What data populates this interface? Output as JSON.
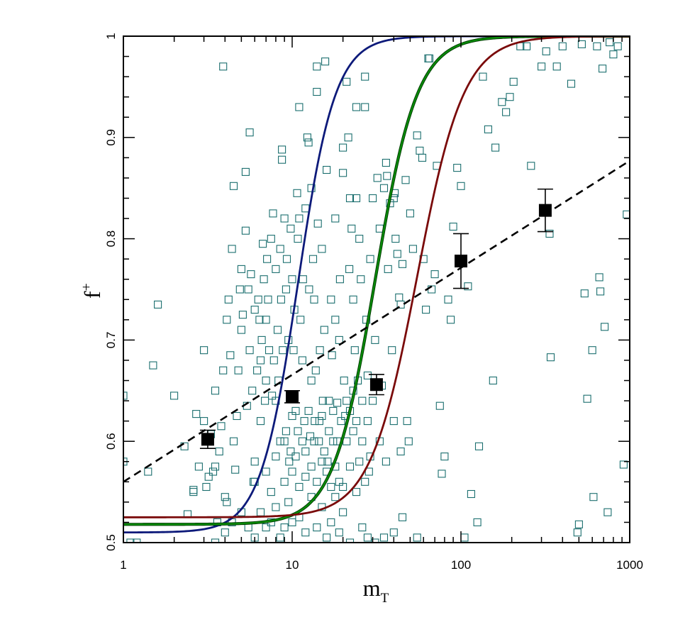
{
  "chart_data": {
    "type": "scatter",
    "title": "",
    "xlabel": "m",
    "xlabel_sub": "T",
    "ylabel": "f",
    "ylabel_sup": "+",
    "x_scale": "log",
    "xlim": [
      1,
      1000
    ],
    "ylim": [
      0.5,
      1.0
    ],
    "x_ticks": [
      1,
      10,
      100,
      1000
    ],
    "x_tick_labels": [
      "1",
      "10",
      "100",
      "1000"
    ],
    "y_ticks": [
      0.5,
      0.6,
      0.7,
      0.8,
      0.9,
      1.0
    ],
    "y_tick_labels": [
      "0.5",
      "0.6",
      "0.7",
      "0.8",
      "0.9",
      "1"
    ],
    "grid": false,
    "colors": {
      "scatter": "#1a6e6e",
      "curve_blue": "#0d1a7a",
      "curve_green": "#0a8a0a",
      "curve_red": "#7a0a0a",
      "binned": "#000000",
      "dashed_fit": "#000000"
    },
    "binned_points": [
      {
        "x": 3.16,
        "y": 0.602,
        "err": 0.009
      },
      {
        "x": 10.0,
        "y": 0.644,
        "err": 0.006
      },
      {
        "x": 31.6,
        "y": 0.656,
        "err": 0.01
      },
      {
        "x": 100,
        "y": 0.778,
        "err": 0.027
      },
      {
        "x": 316,
        "y": 0.828,
        "err": 0.021
      }
    ],
    "dashed_fit": {
      "x": [
        1,
        1000
      ],
      "y": [
        0.56,
        0.877
      ]
    },
    "logistic_curves": [
      {
        "color": "curve_blue",
        "x0": 10.8,
        "k": 9.0,
        "base": 0.51
      },
      {
        "color": "curve_green",
        "x0": 31.0,
        "k": 8.0,
        "base": 0.518
      },
      {
        "color": "curve_red",
        "x0": 55.0,
        "k": 7.2,
        "base": 0.525
      }
    ],
    "scatter_points": [
      [
        1.0,
        0.645
      ],
      [
        1.0,
        0.58
      ],
      [
        1.4,
        0.57
      ],
      [
        1.5,
        0.675
      ],
      [
        1.6,
        0.735
      ],
      [
        1.1,
        0.5
      ],
      [
        1.2,
        0.5
      ],
      [
        2.0,
        0.645
      ],
      [
        2.3,
        0.595
      ],
      [
        2.4,
        0.528
      ],
      [
        2.6,
        0.55
      ],
      [
        2.6,
        0.552
      ],
      [
        2.7,
        0.627
      ],
      [
        2.8,
        0.575
      ],
      [
        3.0,
        0.69
      ],
      [
        3.0,
        0.62
      ],
      [
        3.1,
        0.555
      ],
      [
        3.2,
        0.565
      ],
      [
        3.3,
        0.607
      ],
      [
        3.4,
        0.57
      ],
      [
        3.5,
        0.65
      ],
      [
        3.5,
        0.575
      ],
      [
        3.6,
        0.52
      ],
      [
        3.7,
        0.59
      ],
      [
        3.8,
        0.615
      ],
      [
        3.9,
        0.97
      ],
      [
        3.9,
        0.67
      ],
      [
        4.0,
        0.545
      ],
      [
        4.1,
        0.54
      ],
      [
        4.1,
        0.72
      ],
      [
        4.2,
        0.74
      ],
      [
        4.3,
        0.685
      ],
      [
        4.4,
        0.79
      ],
      [
        4.5,
        0.852
      ],
      [
        4.5,
        0.6
      ],
      [
        4.6,
        0.572
      ],
      [
        4.7,
        0.625
      ],
      [
        4.8,
        0.67
      ],
      [
        4.9,
        0.75
      ],
      [
        5.0,
        0.77
      ],
      [
        5.0,
        0.71
      ],
      [
        5.1,
        0.725
      ],
      [
        5.3,
        0.866
      ],
      [
        5.3,
        0.808
      ],
      [
        5.4,
        0.635
      ],
      [
        5.5,
        0.75
      ],
      [
        5.6,
        0.905
      ],
      [
        5.6,
        0.69
      ],
      [
        5.7,
        0.765
      ],
      [
        5.8,
        0.65
      ],
      [
        5.9,
        0.56
      ],
      [
        6.0,
        0.73
      ],
      [
        6.0,
        0.58
      ],
      [
        6.2,
        0.67
      ],
      [
        6.3,
        0.74
      ],
      [
        6.4,
        0.72
      ],
      [
        6.5,
        0.62
      ],
      [
        6.5,
        0.68
      ],
      [
        6.6,
        0.7
      ],
      [
        6.7,
        0.795
      ],
      [
        6.8,
        0.76
      ],
      [
        6.9,
        0.64
      ],
      [
        7.0,
        0.66
      ],
      [
        7.0,
        0.72
      ],
      [
        7.1,
        0.78
      ],
      [
        7.2,
        0.74
      ],
      [
        7.3,
        0.69
      ],
      [
        7.5,
        0.8
      ],
      [
        7.6,
        0.645
      ],
      [
        7.7,
        0.825
      ],
      [
        7.8,
        0.68
      ],
      [
        8.0,
        0.77
      ],
      [
        8.0,
        0.64
      ],
      [
        8.2,
        0.71
      ],
      [
        8.3,
        0.66
      ],
      [
        8.5,
        0.79
      ],
      [
        8.6,
        0.74
      ],
      [
        8.7,
        0.888
      ],
      [
        8.7,
        0.878
      ],
      [
        8.8,
        0.69
      ],
      [
        9.0,
        0.82
      ],
      [
        9.0,
        0.6
      ],
      [
        9.2,
        0.75
      ],
      [
        9.3,
        0.78
      ],
      [
        9.5,
        0.7
      ],
      [
        9.6,
        0.58
      ],
      [
        9.8,
        0.81
      ],
      [
        10.0,
        0.76
      ],
      [
        10.0,
        0.625
      ],
      [
        10.2,
        0.69
      ],
      [
        10.3,
        0.73
      ],
      [
        10.5,
        0.63
      ],
      [
        10.7,
        0.845
      ],
      [
        10.8,
        0.8
      ],
      [
        11.0,
        0.93
      ],
      [
        11.0,
        0.82
      ],
      [
        11.2,
        0.72
      ],
      [
        11.5,
        0.68
      ],
      [
        11.6,
        0.76
      ],
      [
        11.8,
        0.62
      ],
      [
        12.0,
        0.83
      ],
      [
        12.0,
        0.59
      ],
      [
        12.3,
        0.9
      ],
      [
        12.5,
        0.895
      ],
      [
        12.6,
        0.75
      ],
      [
        12.8,
        0.605
      ],
      [
        13.0,
        0.85
      ],
      [
        13.0,
        0.66
      ],
      [
        13.3,
        0.78
      ],
      [
        13.5,
        0.74
      ],
      [
        13.6,
        0.62
      ],
      [
        13.8,
        0.67
      ],
      [
        14.0,
        0.945
      ],
      [
        14.0,
        0.97
      ],
      [
        14.2,
        0.815
      ],
      [
        14.4,
        0.6
      ],
      [
        14.6,
        0.69
      ],
      [
        15.0,
        0.79
      ],
      [
        15.0,
        0.625
      ],
      [
        15.2,
        0.64
      ],
      [
        15.5,
        0.71
      ],
      [
        15.7,
        0.975
      ],
      [
        16.0,
        0.868
      ],
      [
        16.2,
        0.58
      ],
      [
        16.5,
        0.64
      ],
      [
        17.0,
        0.74
      ],
      [
        17.2,
        0.685
      ],
      [
        17.5,
        0.6
      ],
      [
        18.0,
        0.82
      ],
      [
        18.0,
        0.72
      ],
      [
        18.5,
        0.638
      ],
      [
        19.0,
        0.7
      ],
      [
        19.2,
        0.76
      ],
      [
        20.0,
        0.865
      ],
      [
        20.0,
        0.89
      ],
      [
        20.3,
        0.66
      ],
      [
        20.6,
        0.625
      ],
      [
        21.0,
        0.955
      ],
      [
        21.5,
        0.9
      ],
      [
        21.8,
        0.77
      ],
      [
        22.0,
        0.84
      ],
      [
        22.5,
        0.81
      ],
      [
        23.0,
        0.74
      ],
      [
        23.5,
        0.69
      ],
      [
        24.0,
        0.93
      ],
      [
        24.0,
        0.84
      ],
      [
        24.5,
        0.66
      ],
      [
        25.0,
        0.8
      ],
      [
        25.5,
        0.76
      ],
      [
        26.0,
        0.6
      ],
      [
        27.0,
        0.96
      ],
      [
        27.0,
        0.93
      ],
      [
        27.5,
        0.72
      ],
      [
        28.0,
        0.665
      ],
      [
        28.5,
        0.57
      ],
      [
        29.0,
        0.78
      ],
      [
        30.0,
        0.84
      ],
      [
        31.0,
        0.7
      ],
      [
        32.0,
        0.86
      ],
      [
        33.0,
        0.81
      ],
      [
        34.0,
        0.655
      ],
      [
        35.0,
        0.85
      ],
      [
        36.0,
        0.875
      ],
      [
        36.5,
        0.862
      ],
      [
        37.0,
        0.77
      ],
      [
        38.0,
        0.835
      ],
      [
        39.0,
        0.69
      ],
      [
        40.0,
        0.84
      ],
      [
        40.5,
        0.845
      ],
      [
        41.0,
        0.8
      ],
      [
        42.0,
        0.785
      ],
      [
        43.0,
        0.742
      ],
      [
        44.0,
        0.735
      ],
      [
        45.0,
        0.775
      ],
      [
        47.0,
        0.858
      ],
      [
        48.0,
        0.62
      ],
      [
        49.0,
        0.6
      ],
      [
        50.0,
        0.825
      ],
      [
        52.0,
        0.79
      ],
      [
        55.0,
        0.902
      ],
      [
        57.0,
        0.887
      ],
      [
        59.0,
        0.88
      ],
      [
        60.0,
        0.78
      ],
      [
        62.0,
        0.73
      ],
      [
        64.0,
        0.978
      ],
      [
        65.0,
        0.978
      ],
      [
        67.0,
        0.75
      ],
      [
        70.0,
        0.765
      ],
      [
        72.0,
        0.872
      ],
      [
        75.0,
        0.635
      ],
      [
        77.0,
        0.568
      ],
      [
        80.0,
        0.585
      ],
      [
        84.0,
        0.74
      ],
      [
        87.0,
        0.72
      ],
      [
        90.0,
        0.812
      ],
      [
        95.0,
        0.87
      ],
      [
        100.0,
        0.852
      ],
      [
        105.0,
        0.505
      ],
      [
        110.0,
        0.753
      ],
      [
        115.0,
        0.548
      ],
      [
        125.0,
        0.52
      ],
      [
        128.0,
        0.595
      ],
      [
        135.0,
        0.96
      ],
      [
        145.0,
        0.908
      ],
      [
        155.0,
        0.66
      ],
      [
        160.0,
        0.89
      ],
      [
        175.0,
        0.935
      ],
      [
        185.0,
        0.925
      ],
      [
        195.0,
        0.94
      ],
      [
        205.0,
        0.955
      ],
      [
        225.0,
        0.99
      ],
      [
        245.0,
        0.99
      ],
      [
        260.0,
        0.872
      ],
      [
        300.0,
        0.97
      ],
      [
        320.0,
        0.985
      ],
      [
        335.0,
        0.805
      ],
      [
        340.0,
        0.683
      ],
      [
        370.0,
        0.97
      ],
      [
        400.0,
        0.99
      ],
      [
        450.0,
        0.953
      ],
      [
        490.0,
        0.51
      ],
      [
        500.0,
        0.518
      ],
      [
        520.0,
        0.992
      ],
      [
        540.0,
        0.746
      ],
      [
        560.0,
        0.642
      ],
      [
        600.0,
        0.69
      ],
      [
        610.0,
        0.545
      ],
      [
        640.0,
        0.99
      ],
      [
        660.0,
        0.762
      ],
      [
        670.0,
        0.748
      ],
      [
        690.0,
        0.968
      ],
      [
        710.0,
        0.713
      ],
      [
        740.0,
        0.53
      ],
      [
        760.0,
        0.994
      ],
      [
        800.0,
        0.982
      ],
      [
        850.0,
        0.99
      ],
      [
        920.0,
        0.577
      ],
      [
        960.0,
        0.824
      ],
      [
        3.5,
        0.5
      ],
      [
        4.0,
        0.51
      ],
      [
        4.4,
        0.52
      ],
      [
        5.0,
        0.53
      ],
      [
        5.5,
        0.515
      ],
      [
        6.0,
        0.505
      ],
      [
        6.5,
        0.53
      ],
      [
        7.0,
        0.515
      ],
      [
        7.5,
        0.52
      ],
      [
        8.0,
        0.535
      ],
      [
        8.5,
        0.505
      ],
      [
        9.0,
        0.515
      ],
      [
        9.5,
        0.54
      ],
      [
        10.0,
        0.52
      ],
      [
        11.0,
        0.525
      ],
      [
        12.0,
        0.51
      ],
      [
        13.0,
        0.545
      ],
      [
        14.0,
        0.515
      ],
      [
        15.0,
        0.535
      ],
      [
        16.0,
        0.505
      ],
      [
        17.0,
        0.52
      ],
      [
        18.0,
        0.545
      ],
      [
        19.0,
        0.51
      ],
      [
        20.0,
        0.53
      ],
      [
        22.0,
        0.5
      ],
      [
        24.0,
        0.55
      ],
      [
        26.0,
        0.515
      ],
      [
        28.0,
        0.505
      ],
      [
        31.0,
        0.5
      ],
      [
        35.0,
        0.505
      ],
      [
        40.0,
        0.51
      ],
      [
        45.0,
        0.525
      ],
      [
        55.0,
        0.505
      ],
      [
        6.0,
        0.56
      ],
      [
        7.0,
        0.57
      ],
      [
        7.5,
        0.55
      ],
      [
        8.0,
        0.585
      ],
      [
        9.0,
        0.56
      ],
      [
        10.0,
        0.57
      ],
      [
        10.5,
        0.585
      ],
      [
        11.0,
        0.555
      ],
      [
        12.0,
        0.565
      ],
      [
        13.0,
        0.575
      ],
      [
        14.0,
        0.56
      ],
      [
        15.0,
        0.58
      ],
      [
        16.0,
        0.57
      ],
      [
        17.0,
        0.555
      ],
      [
        18.0,
        0.575
      ],
      [
        19.0,
        0.56
      ],
      [
        20.0,
        0.555
      ],
      [
        21.0,
        0.6
      ],
      [
        22.0,
        0.575
      ],
      [
        23.0,
        0.61
      ],
      [
        25.0,
        0.58
      ],
      [
        27.0,
        0.56
      ],
      [
        29.0,
        0.585
      ],
      [
        33.0,
        0.6
      ],
      [
        36.0,
        0.58
      ],
      [
        40.0,
        0.62
      ],
      [
        44.0,
        0.59
      ],
      [
        8.5,
        0.6
      ],
      [
        9.2,
        0.61
      ],
      [
        9.8,
        0.59
      ],
      [
        10.8,
        0.61
      ],
      [
        11.5,
        0.6
      ],
      [
        12.5,
        0.63
      ],
      [
        13.5,
        0.6
      ],
      [
        14.5,
        0.62
      ],
      [
        15.5,
        0.59
      ],
      [
        16.5,
        0.61
      ],
      [
        17.5,
        0.63
      ],
      [
        18.5,
        0.6
      ],
      [
        19.5,
        0.62
      ],
      [
        21.0,
        0.64
      ],
      [
        22.0,
        0.63
      ],
      [
        23.0,
        0.65
      ],
      [
        24.0,
        0.62
      ],
      [
        26.0,
        0.64
      ],
      [
        28.0,
        0.62
      ],
      [
        30.0,
        0.64
      ]
    ]
  }
}
